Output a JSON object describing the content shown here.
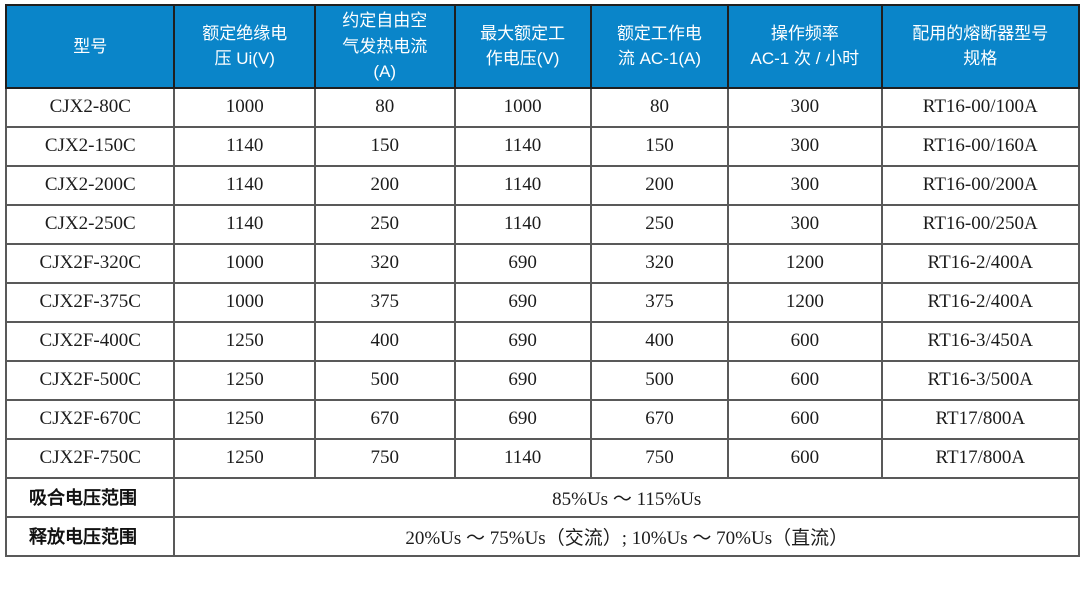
{
  "colors": {
    "header_bg": "#0a85c9",
    "header_text": "#ffffff",
    "body_text": "#1c1c1c",
    "inner_border": "#595959",
    "outer_border": "#161616"
  },
  "table": {
    "headers": [
      [
        "型号"
      ],
      [
        "额定绝缘电",
        "压 Ui(V)"
      ],
      [
        "约定自由空",
        "气发热电流",
        "(A)"
      ],
      [
        "最大额定工",
        "作电压(V)"
      ],
      [
        "额定工作电",
        "流 AC-1(A)"
      ],
      [
        "操作频率",
        "AC-1 次 / 小时"
      ],
      [
        "配用的熔断器型号",
        "规格"
      ]
    ],
    "rows": [
      [
        "CJX2-80C",
        "1000",
        "80",
        "1000",
        "80",
        "300",
        "RT16-00/100A"
      ],
      [
        "CJX2-150C",
        "1140",
        "150",
        "1140",
        "150",
        "300",
        "RT16-00/160A"
      ],
      [
        "CJX2-200C",
        "1140",
        "200",
        "1140",
        "200",
        "300",
        "RT16-00/200A"
      ],
      [
        "CJX2-250C",
        "1140",
        "250",
        "1140",
        "250",
        "300",
        "RT16-00/250A"
      ],
      [
        "CJX2F-320C",
        "1000",
        "320",
        "690",
        "320",
        "1200",
        "RT16-2/400A"
      ],
      [
        "CJX2F-375C",
        "1000",
        "375",
        "690",
        "375",
        "1200",
        "RT16-2/400A"
      ],
      [
        "CJX2F-400C",
        "1250",
        "400",
        "690",
        "400",
        "600",
        "RT16-3/450A"
      ],
      [
        "CJX2F-500C",
        "1250",
        "500",
        "690",
        "500",
        "600",
        "RT16-3/500A"
      ],
      [
        "CJX2F-670C",
        "1250",
        "670",
        "690",
        "670",
        "600",
        "RT17/800A"
      ],
      [
        "CJX2F-750C",
        "1250",
        "750",
        "1140",
        "750",
        "600",
        "RT17/800A"
      ]
    ],
    "footer_rows": [
      {
        "label": "吸合电压范围",
        "value": "85%Us ～ 115%Us"
      },
      {
        "label": "释放电压范围",
        "value": "20%Us ～ 75%Us（交流）; 10%Us ～ 70%Us（直流）"
      }
    ]
  }
}
